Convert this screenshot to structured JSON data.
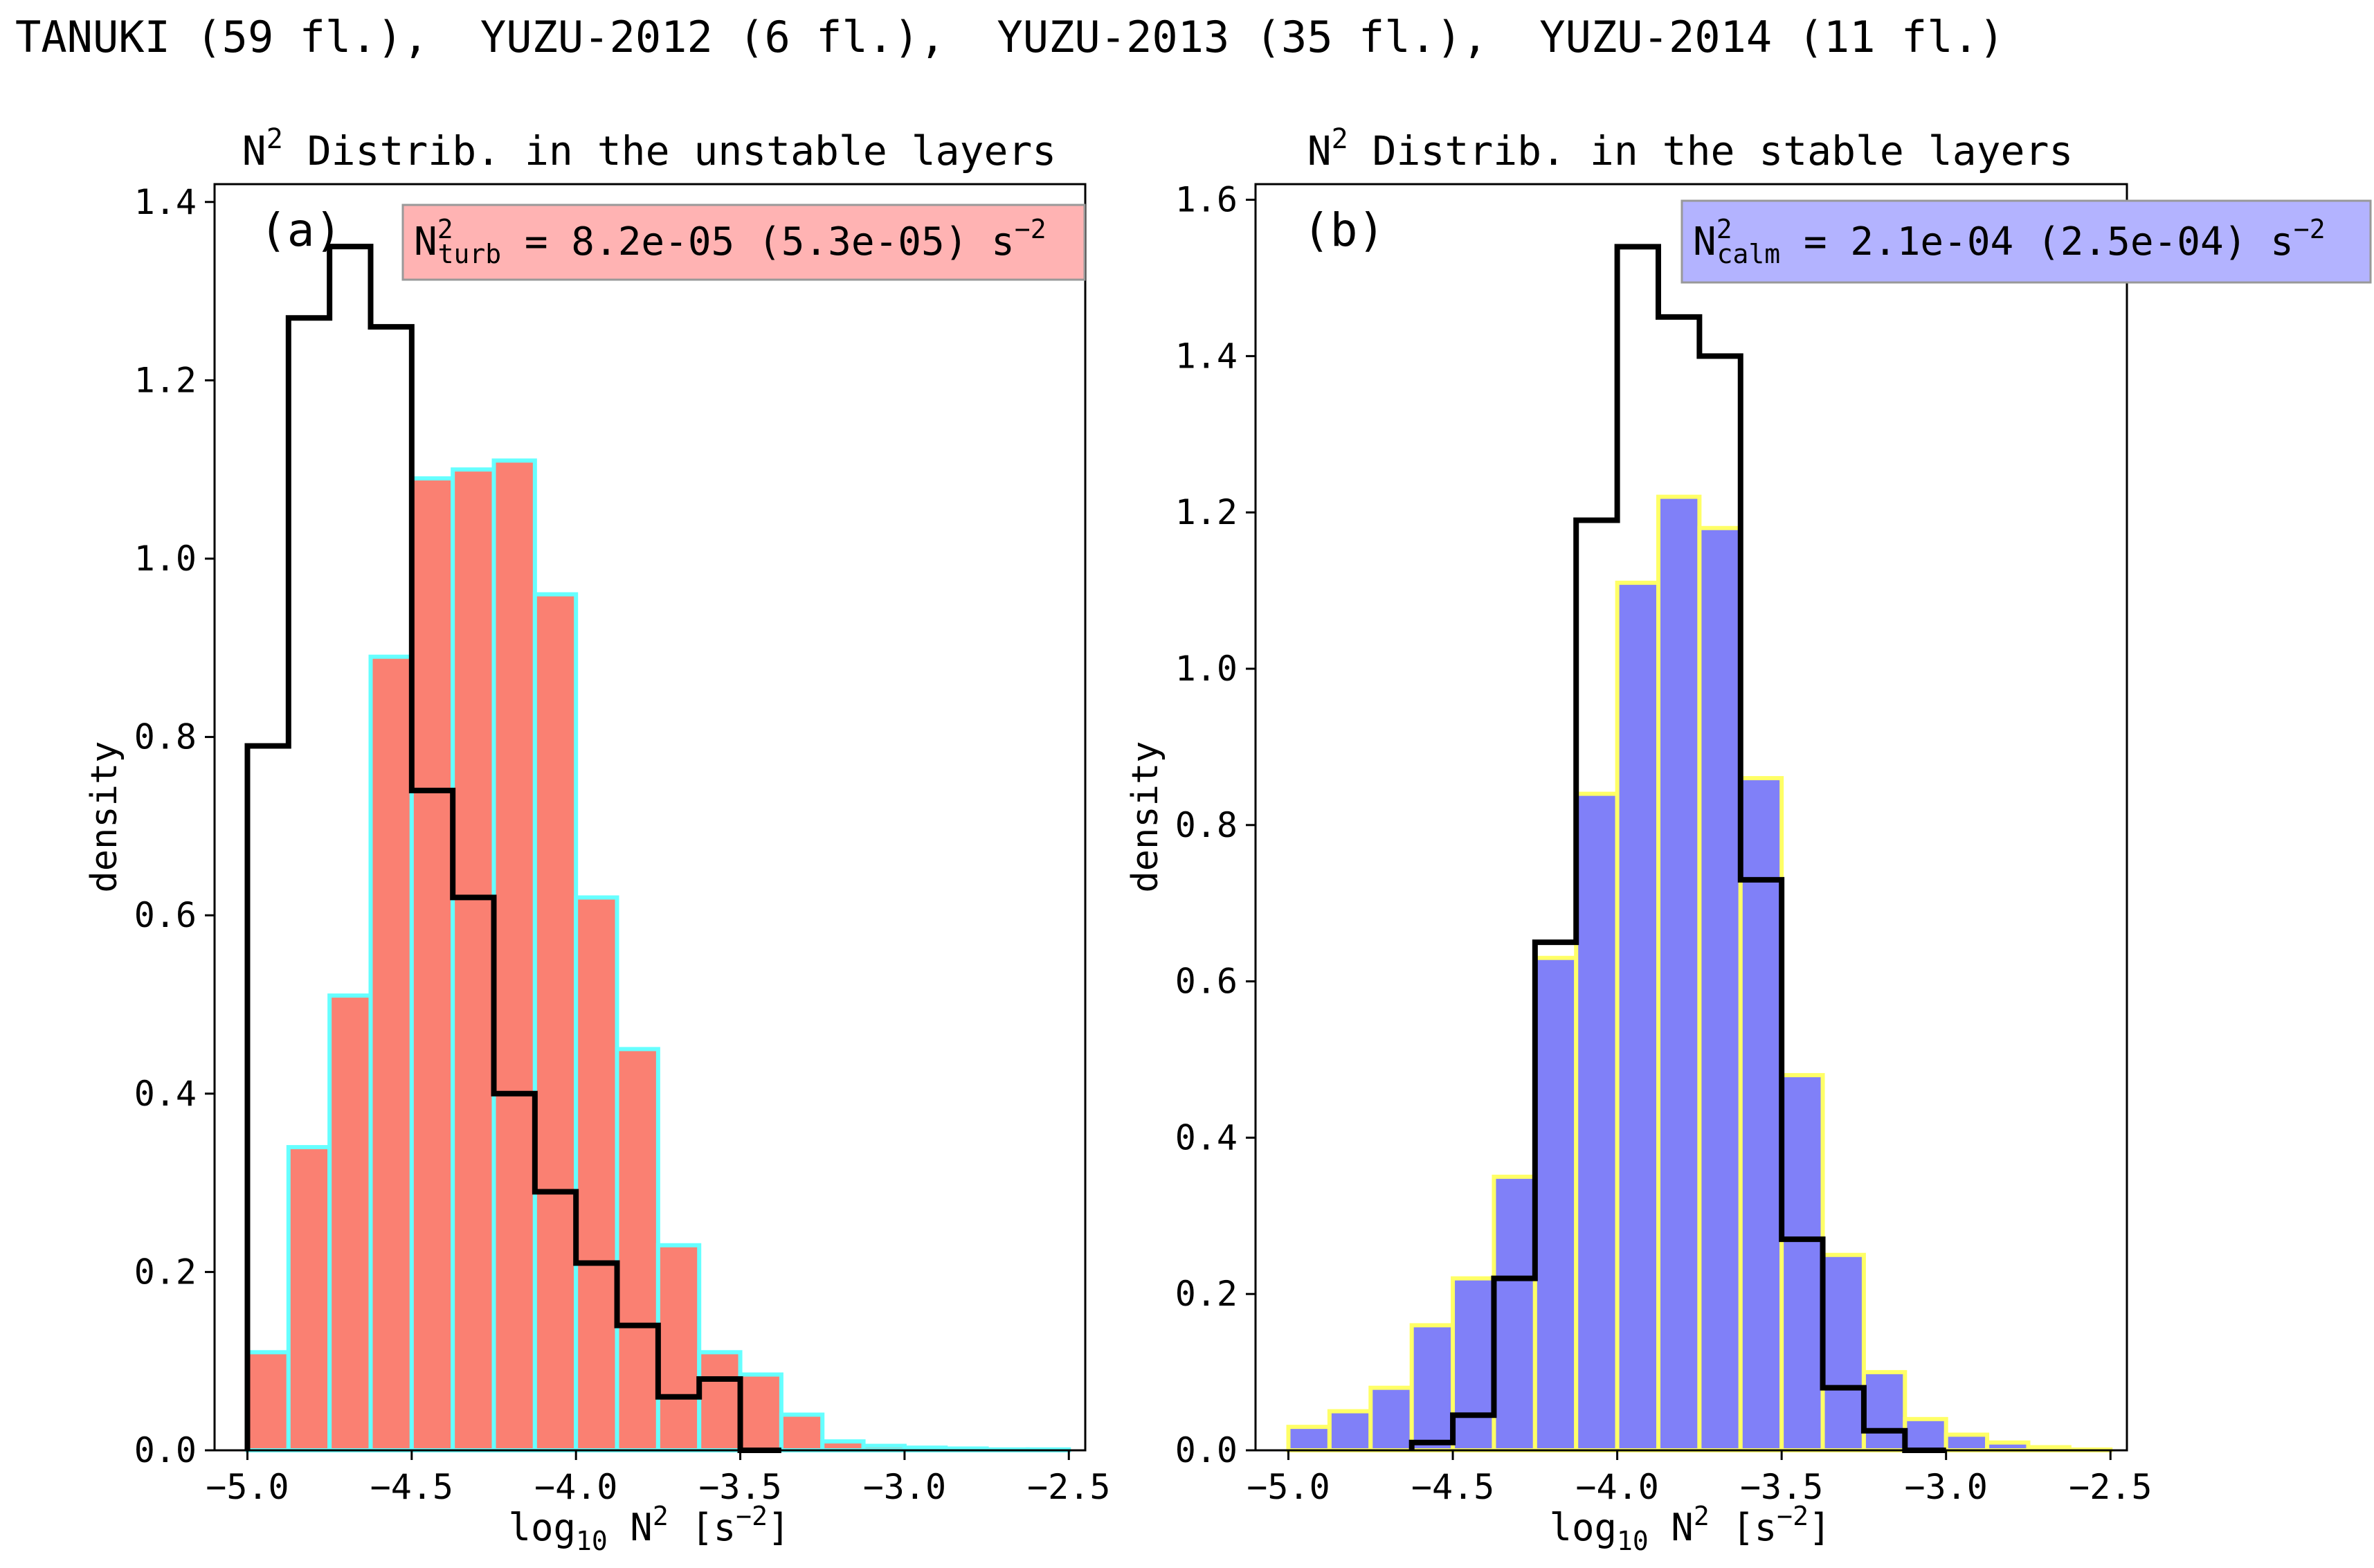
{
  "suptitle": "TANUKI (59 fl.),  YUZU-2012 (6 fl.),  YUZU-2013 (35 fl.),  YUZU-2014 (11 fl.)",
  "chart_data": [
    {
      "type": "bar",
      "panel": "(a)",
      "title_base": "N",
      "title_sup": "2",
      "title_rest": " Distrib. in the unstable layers",
      "xlabel_pre": "log",
      "xlabel_sub": "10",
      "xlabel_mid": " N",
      "xlabel_sup1": "2",
      "xlabel_unit": " [s",
      "xlabel_sup2": "−2",
      "xlabel_end": "]",
      "ylabel": "density",
      "xlim": [
        -5.1,
        -2.45
      ],
      "ylim": [
        0,
        1.42
      ],
      "xticks": [
        -5.0,
        -4.5,
        -4.0,
        -3.5,
        -3.0,
        -2.5
      ],
      "xtick_labels": [
        "−5.0",
        "−4.5",
        "−4.0",
        "−3.5",
        "−3.0",
        "−2.5"
      ],
      "yticks": [
        0.0,
        0.2,
        0.4,
        0.6,
        0.8,
        1.0,
        1.2,
        1.4
      ],
      "ytick_labels": [
        "0.0",
        "0.2",
        "0.4",
        "0.6",
        "0.8",
        "1.0",
        "1.2",
        "1.4"
      ],
      "legend_position": "top-right",
      "bars": {
        "color": "#fa8072",
        "edge": "#66ffff",
        "bin_edges": [
          -5.0,
          -4.875,
          -4.75,
          -4.625,
          -4.5,
          -4.375,
          -4.25,
          -4.125,
          -4.0,
          -3.875,
          -3.75,
          -3.625,
          -3.5,
          -3.375,
          -3.25,
          -3.125,
          -3.0,
          -2.875,
          -2.75,
          -2.625,
          -2.5
        ],
        "values": [
          0.11,
          0.34,
          0.51,
          0.89,
          1.09,
          1.1,
          1.11,
          0.96,
          0.62,
          0.45,
          0.23,
          0.11,
          0.085,
          0.04,
          0.01,
          0.005,
          0.003,
          0.002,
          0.001,
          0.001
        ]
      },
      "step": {
        "color": "#000000",
        "bin_edges": [
          -5.0,
          -4.875,
          -4.75,
          -4.625,
          -4.5,
          -4.375,
          -4.25,
          -4.125,
          -4.0,
          -3.875,
          -3.75,
          -3.625,
          -3.5,
          -3.375
        ],
        "values": [
          0.79,
          1.27,
          1.35,
          1.26,
          0.74,
          0.62,
          0.4,
          0.29,
          0.21,
          0.14,
          0.06,
          0.08,
          0.0
        ]
      },
      "stat": {
        "sym": "N",
        "sup": "2",
        "sub": "turb",
        "value_text": " = 8.2e-05 (5.3e-05) s",
        "unit_sup": "−2",
        "box_color": "#ffb3b3"
      }
    },
    {
      "type": "bar",
      "panel": "(b)",
      "title_base": "N",
      "title_sup": "2",
      "title_rest": " Distrib. in the stable layers",
      "xlabel_pre": "log",
      "xlabel_sub": "10",
      "xlabel_mid": " N",
      "xlabel_sup1": "2",
      "xlabel_unit": " [s",
      "xlabel_sup2": "−2",
      "xlabel_end": "]",
      "ylabel": "density",
      "xlim": [
        -5.1,
        -2.45
      ],
      "ylim": [
        0,
        1.62
      ],
      "xticks": [
        -5.0,
        -4.5,
        -4.0,
        -3.5,
        -3.0,
        -2.5
      ],
      "xtick_labels": [
        "−5.0",
        "−4.5",
        "−4.0",
        "−3.5",
        "−3.0",
        "−2.5"
      ],
      "yticks": [
        0.0,
        0.2,
        0.4,
        0.6,
        0.8,
        1.0,
        1.2,
        1.4,
        1.6
      ],
      "ytick_labels": [
        "0.0",
        "0.2",
        "0.4",
        "0.6",
        "0.8",
        "1.0",
        "1.2",
        "1.4",
        "1.6"
      ],
      "legend_position": "top-right",
      "bars": {
        "color": "#8080f8",
        "edge": "#ffff66",
        "bin_edges": [
          -5.0,
          -4.875,
          -4.75,
          -4.625,
          -4.5,
          -4.375,
          -4.25,
          -4.125,
          -4.0,
          -3.875,
          -3.75,
          -3.625,
          -3.5,
          -3.375,
          -3.25,
          -3.125,
          -3.0,
          -2.875,
          -2.75,
          -2.625,
          -2.5
        ],
        "values": [
          0.03,
          0.05,
          0.08,
          0.16,
          0.22,
          0.35,
          0.63,
          0.84,
          1.11,
          1.22,
          1.18,
          0.86,
          0.48,
          0.25,
          0.1,
          0.04,
          0.02,
          0.01,
          0.004,
          0.001
        ]
      },
      "step": {
        "color": "#000000",
        "bin_edges": [
          -4.625,
          -4.5,
          -4.375,
          -4.25,
          -4.125,
          -4.0,
          -3.875,
          -3.75,
          -3.625,
          -3.5,
          -3.375,
          -3.25,
          -3.125,
          -3.0
        ],
        "values": [
          0.01,
          0.045,
          0.22,
          0.65,
          1.19,
          1.54,
          1.45,
          1.4,
          0.73,
          0.27,
          0.08,
          0.025,
          0.0
        ]
      },
      "stat": {
        "sym": "N",
        "sup": "2",
        "sub": "calm",
        "value_text": " = 2.1e-04 (2.5e-04) s",
        "unit_sup": "−2",
        "box_color": "#b3b3ff"
      }
    }
  ]
}
